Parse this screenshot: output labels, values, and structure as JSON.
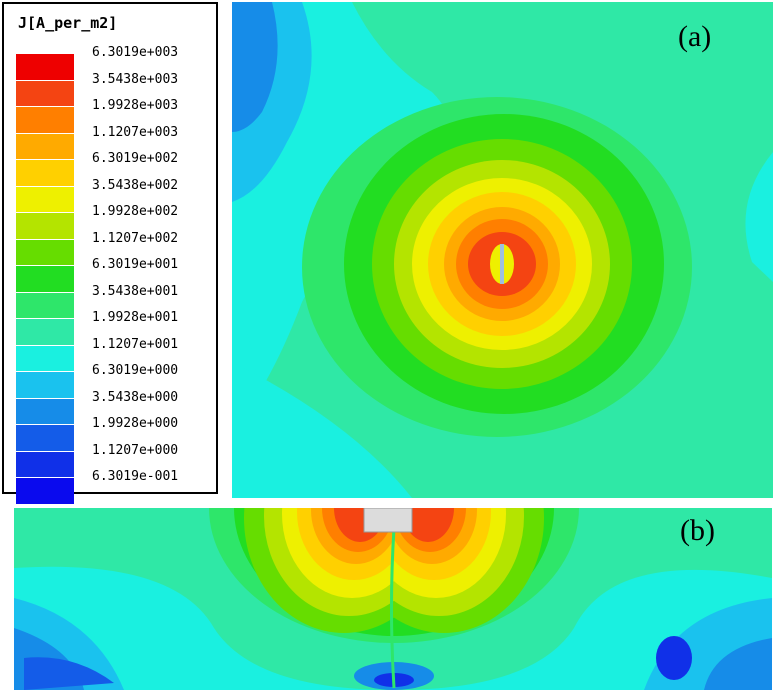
{
  "legend": {
    "title": "J[A_per_m2]",
    "levels": [
      {
        "label": "6.3019e+003",
        "color": "#ee0000"
      },
      {
        "label": "3.5438e+003",
        "color": "#f44412"
      },
      {
        "label": "1.9928e+003",
        "color": "#ff7f00"
      },
      {
        "label": "1.1207e+003",
        "color": "#ffaa00"
      },
      {
        "label": "6.3019e+002",
        "color": "#ffd000"
      },
      {
        "label": "3.5438e+002",
        "color": "#eef000"
      },
      {
        "label": "1.9928e+002",
        "color": "#b4e400"
      },
      {
        "label": "1.1207e+002",
        "color": "#66dd00"
      },
      {
        "label": "6.3019e+001",
        "color": "#22dd22"
      },
      {
        "label": "3.5438e+001",
        "color": "#2ee66a"
      },
      {
        "label": "1.9928e+001",
        "color": "#2fe8a6"
      },
      {
        "label": "1.1207e+001",
        "color": "#1af0e0"
      },
      {
        "label": "6.3019e+000",
        "color": "#1ac2ee"
      },
      {
        "label": "3.5438e+000",
        "color": "#168ce8"
      },
      {
        "label": "1.9928e+000",
        "color": "#145ce8"
      },
      {
        "label": "1.1207e+000",
        "color": "#1030e8"
      },
      {
        "label": "6.3019e-001",
        "color": "#0a0aee"
      }
    ]
  },
  "panels": {
    "a": {
      "label": "(a)"
    },
    "b": {
      "label": "(b)"
    }
  }
}
